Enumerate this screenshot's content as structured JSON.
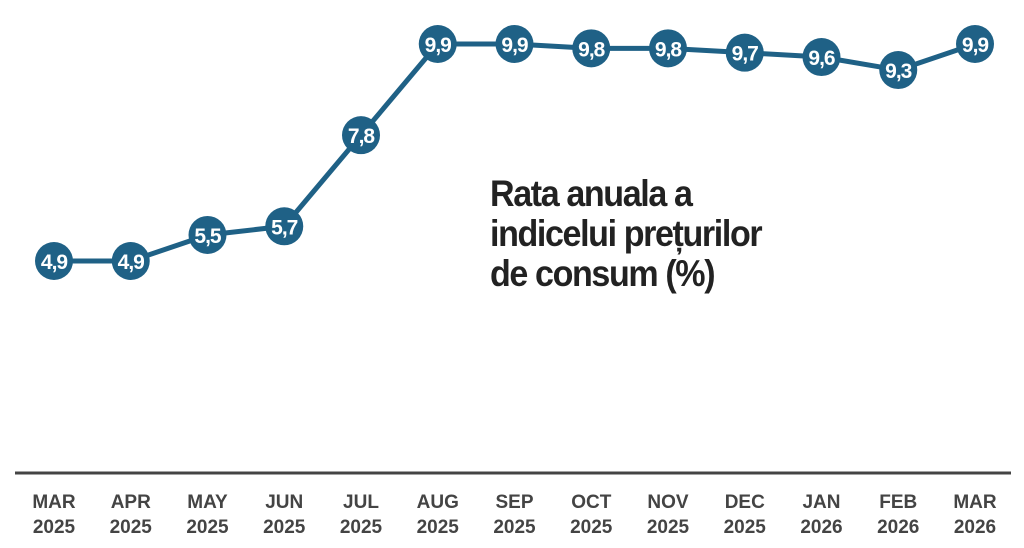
{
  "chart_data": {
    "type": "line",
    "title_lines": [
      "Rata anuala a",
      "indicelui prețurilor",
      "de consum (%)"
    ],
    "categories": [
      [
        "MAR",
        "2025"
      ],
      [
        "APR",
        "2025"
      ],
      [
        "MAY",
        "2025"
      ],
      [
        "JUN",
        "2025"
      ],
      [
        "JUL",
        "2025"
      ],
      [
        "AUG",
        "2025"
      ],
      [
        "SEP",
        "2025"
      ],
      [
        "OCT",
        "2025"
      ],
      [
        "NOV",
        "2025"
      ],
      [
        "DEC",
        "2025"
      ],
      [
        "JAN",
        "2026"
      ],
      [
        "FEB",
        "2026"
      ],
      [
        "MAR",
        "2026"
      ]
    ],
    "values": [
      4.9,
      4.9,
      5.5,
      5.7,
      7.8,
      9.9,
      9.9,
      9.8,
      9.8,
      9.7,
      9.6,
      9.3,
      9.9
    ],
    "data_labels": [
      "4,9",
      "4,9",
      "5,5",
      "5,7",
      "7,8",
      "9,9",
      "9,9",
      "9,8",
      "9,8",
      "9,7",
      "9,6",
      "9,3",
      "9,9"
    ],
    "xlabel": "",
    "ylabel": "",
    "grid": false,
    "legend": "none",
    "colors": {
      "line": "#1f6186",
      "axis": "#444444",
      "label": "#444444",
      "title": "#222222"
    }
  }
}
